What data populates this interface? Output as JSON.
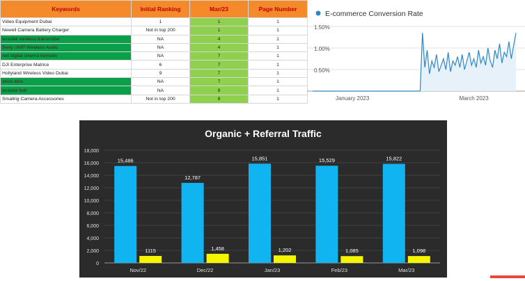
{
  "keywords_table": {
    "headers": [
      "Keywords",
      "Initial Ranking",
      "Mar/23",
      "Page Number"
    ],
    "rows": [
      {
        "keyword": "Video Equipment Dubai",
        "initial": "1",
        "mar": "1",
        "page": "1",
        "highlight": false
      },
      {
        "keyword": "Newell Camera Battery Charger",
        "initial": "Not in top 200",
        "mar": "1",
        "page": "1",
        "highlight": false
      },
      {
        "keyword": "teradek wireless transmitter",
        "initial": "NA",
        "mar": "4",
        "page": "1",
        "highlight": true
      },
      {
        "keyword": "Sony UWP Wireless Audio",
        "initial": "NA",
        "mar": "4",
        "page": "1",
        "highlight": true
      },
      {
        "keyword": "red digital cinema komodo",
        "initial": "NA",
        "mar": "7",
        "page": "1",
        "highlight": true
      },
      {
        "keyword": "DJI Enterprise Matrice",
        "initial": "6",
        "mar": "7",
        "page": "1",
        "highlight": false
      },
      {
        "keyword": "Hollyland Wireless Video Dubai",
        "initial": "9",
        "mar": "7",
        "page": "1",
        "highlight": false
      },
      {
        "keyword": "zeiss lens",
        "initial": "NA",
        "mar": "7",
        "page": "1",
        "highlight": true
      },
      {
        "keyword": "teradek bolt",
        "initial": "NA",
        "mar": "8",
        "page": "1",
        "highlight": true
      },
      {
        "keyword": "Smallrig Camera Accessories",
        "initial": "Not in top 200",
        "mar": "8",
        "page": "1",
        "highlight": false
      }
    ]
  },
  "chart_data": [
    {
      "type": "line",
      "legend": "E-commerce Conversion Rate",
      "y_ticks": [
        "1.50%",
        "1.00%",
        "0.50%"
      ],
      "ylim": [
        0,
        1.5
      ],
      "x_ticks": [
        "January 2023",
        "March 2023"
      ],
      "x_tick_days": [
        17,
        69
      ],
      "x_range_days": [
        0,
        87
      ],
      "series": [
        {
          "x": [
            0,
            4,
            8,
            12,
            16,
            20,
            24,
            28,
            32,
            36,
            40,
            44,
            46,
            47,
            48,
            49,
            50,
            51,
            52,
            53,
            54,
            55,
            56,
            57,
            58,
            59,
            60,
            61,
            62,
            63,
            64,
            65,
            66,
            67,
            68,
            69,
            70,
            71,
            72,
            73,
            74,
            75,
            76,
            77,
            78,
            79,
            80,
            81,
            82,
            83,
            84,
            85,
            86,
            87
          ],
          "y": [
            0,
            0,
            0,
            0,
            0,
            0,
            0,
            0,
            0,
            0,
            0,
            0,
            0,
            1.35,
            0.55,
            0.95,
            0.4,
            0.7,
            0.55,
            0.85,
            0.45,
            0.6,
            0.75,
            0.5,
            0.9,
            0.45,
            0.7,
            0.6,
            0.8,
            0.55,
            0.85,
            0.5,
            0.7,
            0.9,
            0.6,
            0.75,
            0.55,
            0.95,
            0.65,
            0.8,
            0.6,
            1.0,
            0.7,
            0.55,
            0.95,
            0.75,
            1.1,
            0.65,
            0.9,
            0.8,
            1.15,
            0.75,
            1.05,
            1.35
          ],
          "color": "#2f86c6"
        }
      ],
      "grid": true
    },
    {
      "type": "bar",
      "title": "Organic + Referral Traffic",
      "categories": [
        "Nov/22",
        "Dec/22",
        "Jan/23",
        "Feb/23",
        "Mar/23"
      ],
      "series": [
        {
          "values": [
            15486,
            12787,
            15851,
            15529,
            15822
          ],
          "labels": [
            "15,486",
            "12,787",
            "15,851",
            "15,529",
            "15,822"
          ],
          "color": "#10b4f0"
        },
        {
          "values": [
            1115,
            1458,
            1202,
            1085,
            1098
          ],
          "labels": [
            "1115",
            "1,458",
            "1,202",
            "1,085",
            "1,098"
          ],
          "color": "#f5f500"
        }
      ],
      "y_ticks": [
        "0",
        "2,000",
        "4,000",
        "6,000",
        "8,000",
        "10,000",
        "12,000",
        "14,000",
        "16,000",
        "18,000"
      ],
      "ylim": [
        0,
        18000
      ],
      "grid": true,
      "background": "#2b2b2b"
    }
  ]
}
